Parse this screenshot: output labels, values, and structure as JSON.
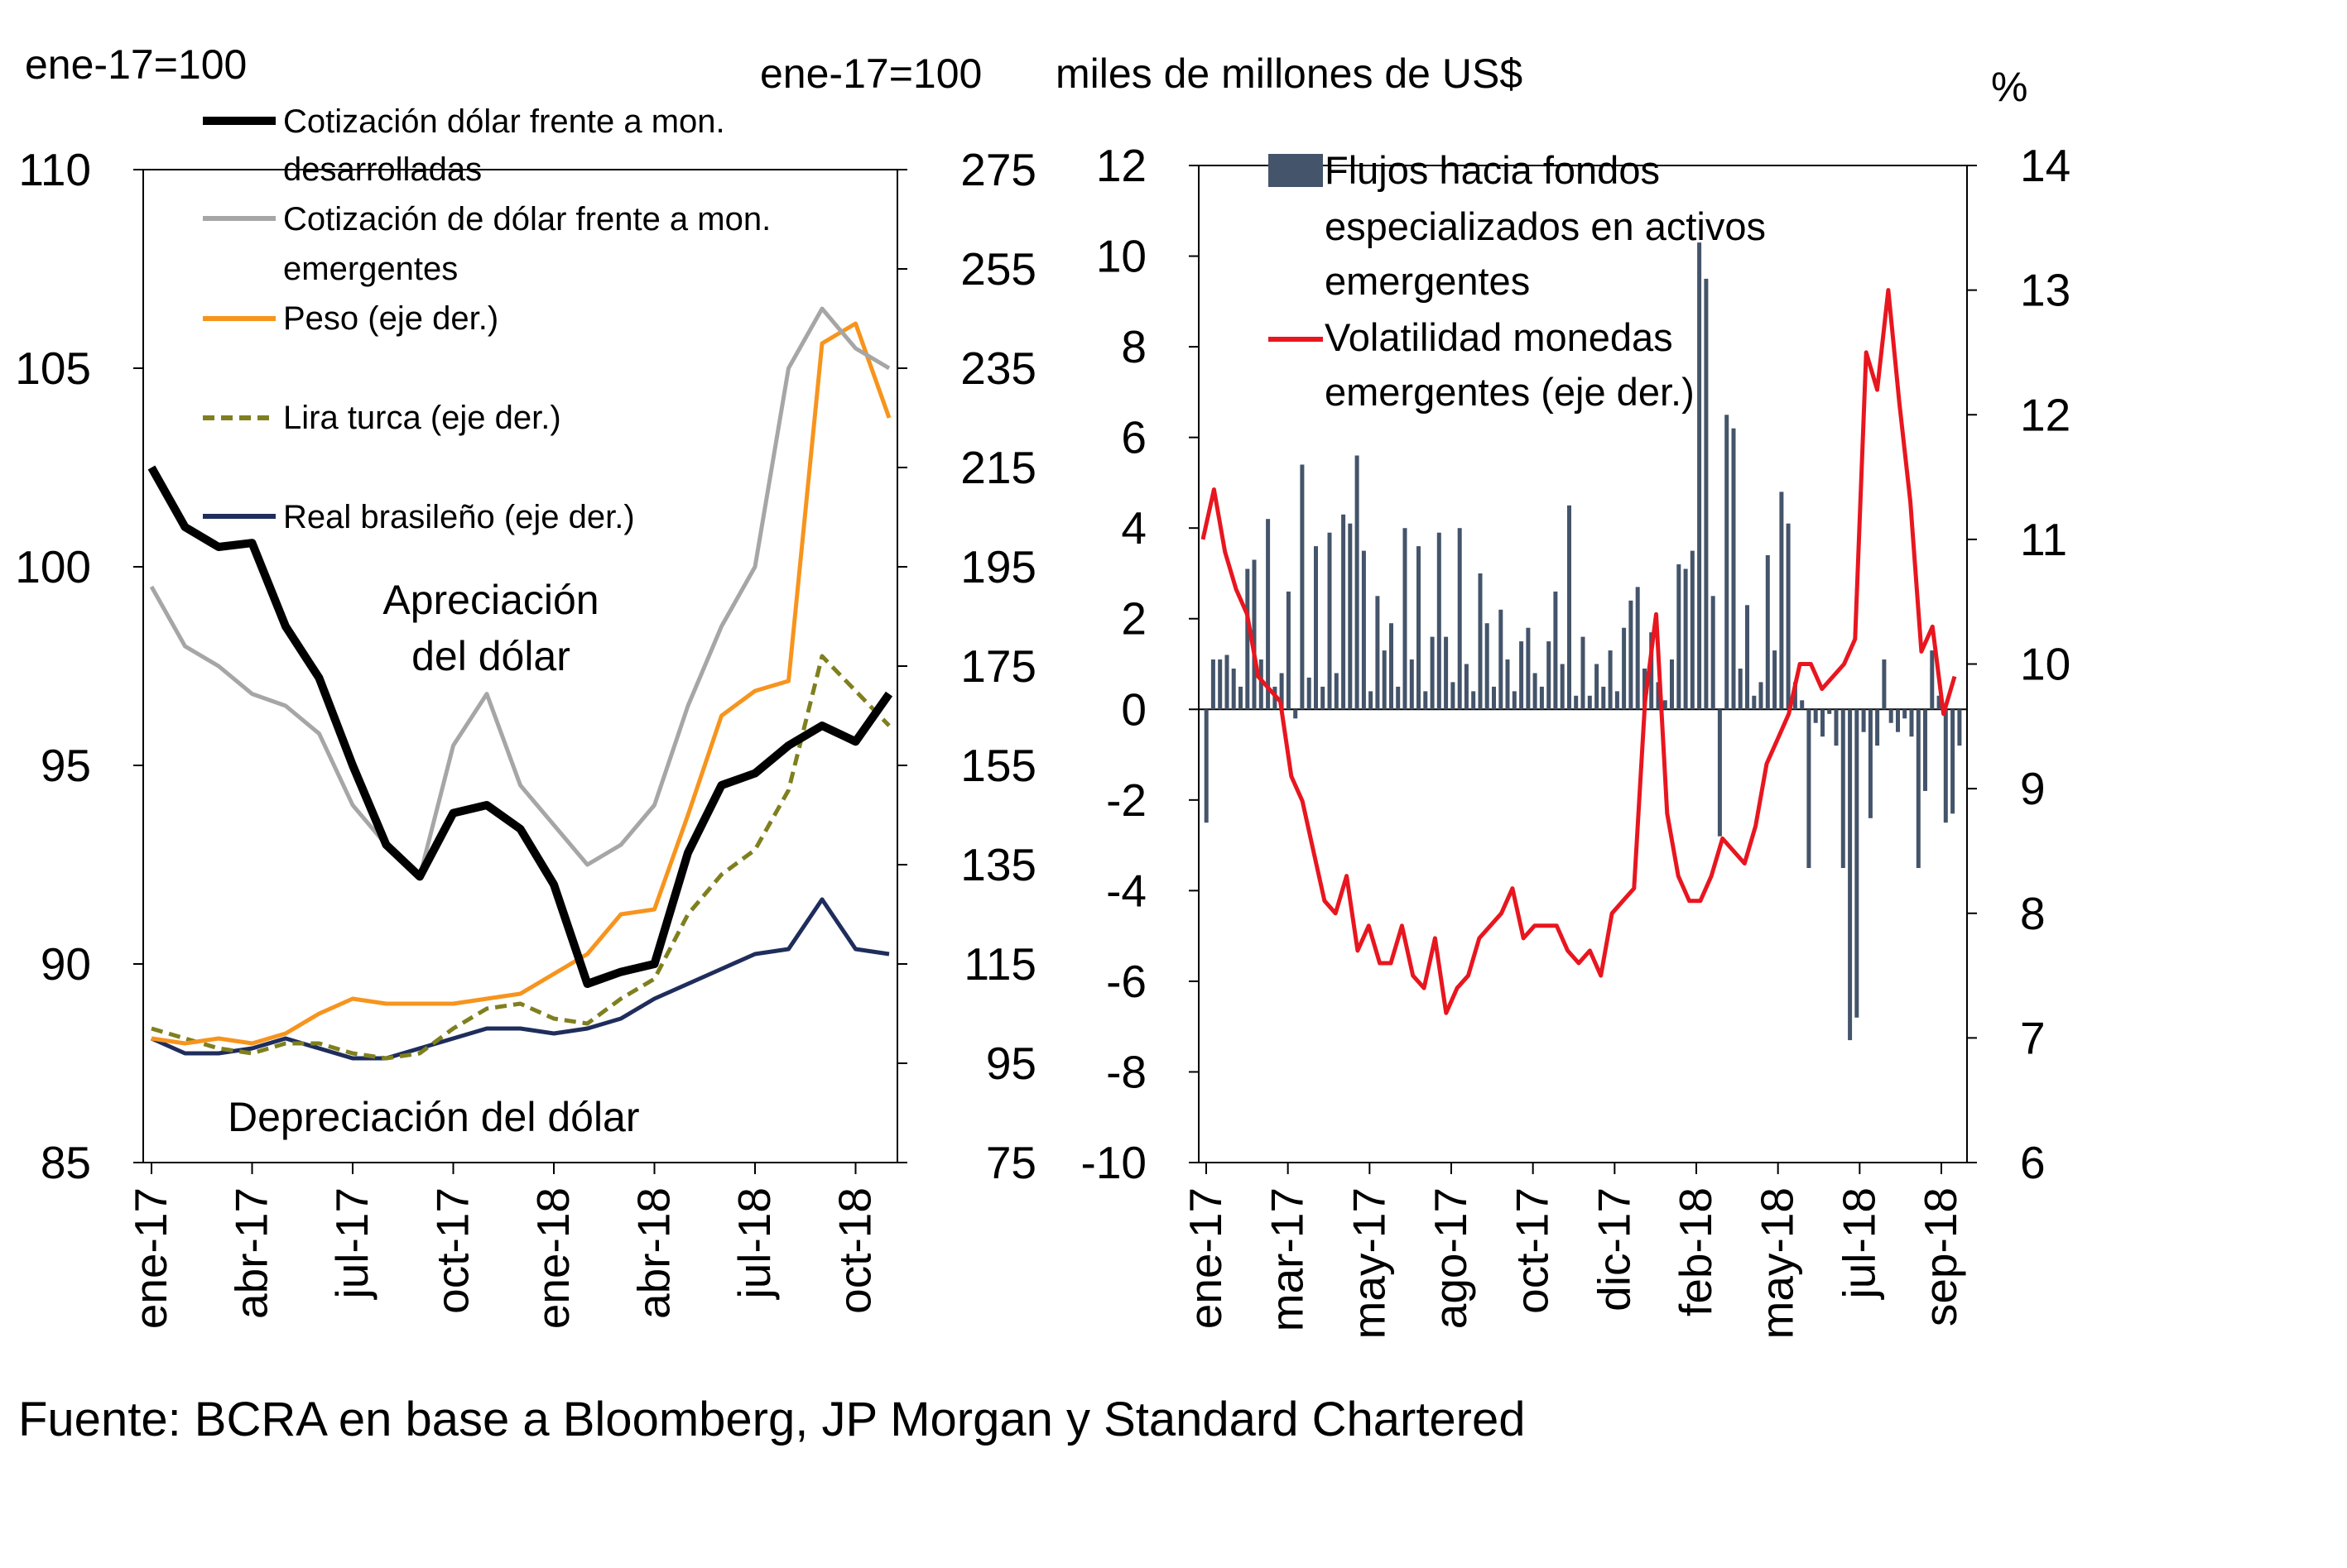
{
  "chart_data": [
    {
      "type": "line",
      "unit_left": "ene-17=100",
      "unit_right": "ene-17=100",
      "x_tick_labels": [
        "ene-17",
        "abr-17",
        "jul-17",
        "oct-17",
        "ene-18",
        "abr-18",
        "jul-18",
        "oct-18"
      ],
      "x": [
        "ene-17",
        "feb-17",
        "mar-17",
        "abr-17",
        "may-17",
        "jun-17",
        "jul-17",
        "ago-17",
        "sep-17",
        "oct-17",
        "nov-17",
        "dic-17",
        "ene-18",
        "feb-18",
        "mar-18",
        "abr-18",
        "may-18",
        "jun-18",
        "jul-18",
        "ago-18",
        "sep-18",
        "oct-18",
        "nov-18"
      ],
      "ylim_left": [
        85,
        110
      ],
      "yticks_left": [
        "85",
        "90",
        "95",
        "100",
        "105",
        "110"
      ],
      "ylim_right": [
        75,
        275
      ],
      "yticks_right": [
        "75",
        "95",
        "115",
        "135",
        "155",
        "175",
        "195",
        "215",
        "235",
        "255",
        "275"
      ],
      "annotations": {
        "up": [
          "Apreciación",
          "del dólar"
        ],
        "down": "Depreciación del  dólar"
      },
      "series": [
        {
          "name": "Cotización dólar frente a mon. desarrolladas",
          "legend_lines": [
            "Cotización dólar frente a mon.",
            "desarrolladas"
          ],
          "axis": "left",
          "color": "#000000",
          "style": "solid-thick",
          "values": [
            102.5,
            101.0,
            100.5,
            100.6,
            98.5,
            97.2,
            95.0,
            93.0,
            92.2,
            93.8,
            94.0,
            93.4,
            92.0,
            89.5,
            89.8,
            90.0,
            92.8,
            94.5,
            94.8,
            95.5,
            96.0,
            95.6,
            96.8
          ]
        },
        {
          "name": "Cotización de dólar frente a mon. emergentes",
          "legend_lines": [
            "Cotización de dólar frente a mon.",
            "emergentes"
          ],
          "axis": "left",
          "color": "#a6a6a6",
          "style": "solid",
          "values": [
            99.5,
            98.0,
            97.5,
            96.8,
            96.5,
            95.8,
            94.0,
            93.0,
            92.2,
            95.5,
            96.8,
            94.5,
            93.5,
            92.5,
            93.0,
            94.0,
            96.5,
            98.5,
            100.0,
            105.0,
            106.5,
            105.5,
            105.0
          ]
        },
        {
          "name": "Peso (eje der.)",
          "legend_lines": [
            "Peso (eje der.)"
          ],
          "axis": "right",
          "color": "#f7941d",
          "style": "solid",
          "values": [
            100,
            99,
            100,
            99,
            101,
            105,
            108,
            107,
            107,
            107,
            108,
            109,
            113,
            117,
            125,
            126,
            145,
            165,
            170,
            172,
            240,
            244,
            225
          ]
        },
        {
          "name": "Lira turca (eje der.)",
          "legend_lines": [
            "Lira turca (eje der.)"
          ],
          "axis": "right",
          "color": "#7f7f1f",
          "style": "dashed",
          "values": [
            102,
            100,
            98,
            97,
            99,
            99,
            97,
            96,
            97,
            102,
            106,
            107,
            104,
            103,
            108,
            112,
            125,
            133,
            138,
            150,
            177,
            170,
            163
          ]
        },
        {
          "name": "Real brasileño (eje der.)",
          "legend_lines": [
            "Real brasileño (eje der.)"
          ],
          "axis": "right",
          "color": "#1f2d5c",
          "style": "solid",
          "values": [
            100,
            97,
            97,
            98,
            100,
            98,
            96,
            96,
            98,
            100,
            102,
            102,
            101,
            102,
            104,
            108,
            111,
            114,
            117,
            118,
            128,
            118,
            117
          ]
        }
      ]
    },
    {
      "type": "bar+line",
      "unit_left": "miles de millones de US$",
      "unit_right": "%",
      "x_tick_labels": [
        "ene-17",
        "mar-17",
        "may-17",
        "ago-17",
        "oct-17",
        "dic-17",
        "feb-18",
        "may-18",
        "jul-18",
        "sep-18"
      ],
      "ylim_left": [
        -10,
        12
      ],
      "yticks_left": [
        "-10",
        "-8",
        "-6",
        "-4",
        "-2",
        "0",
        "2",
        "4",
        "6",
        "8",
        "10",
        "12"
      ],
      "ylim_right": [
        6,
        14
      ],
      "yticks_right": [
        "6",
        "7",
        "8",
        "9",
        "10",
        "11",
        "12",
        "13",
        "14"
      ],
      "bars": {
        "name": "Flujos hacia fondos especializados en activos emergentes",
        "legend_lines": [
          "Flujos hacia fondos",
          "especializados en activos",
          "emergentes"
        ],
        "color": "#44546a",
        "values": [
          -2.5,
          1.1,
          1.1,
          1.2,
          0.9,
          0.5,
          3.1,
          3.3,
          1.1,
          4.2,
          0.5,
          0.8,
          2.6,
          -0.2,
          5.4,
          0.7,
          3.6,
          0.5,
          3.9,
          0.8,
          4.3,
          4.1,
          5.6,
          3.5,
          0.4,
          2.5,
          1.3,
          1.9,
          0.5,
          4.0,
          1.1,
          3.6,
          0.4,
          1.6,
          3.9,
          1.6,
          0.6,
          4.0,
          1.0,
          0.4,
          3.0,
          1.9,
          0.5,
          2.2,
          1.1,
          0.4,
          1.5,
          1.8,
          0.8,
          0.5,
          1.5,
          2.6,
          1.0,
          4.5,
          0.3,
          1.6,
          0.3,
          1.0,
          0.5,
          1.3,
          0.4,
          1.8,
          2.4,
          2.7,
          0.9,
          1.7,
          0.6,
          0.2,
          1.1,
          3.2,
          3.1,
          3.5,
          10.3,
          9.5,
          2.5,
          -2.8,
          6.5,
          6.2,
          0.9,
          2.3,
          0.3,
          0.6,
          3.4,
          1.3,
          4.8,
          4.1,
          0.6,
          0.2,
          -3.5,
          -0.3,
          -0.6,
          -0.1,
          -0.8,
          -3.5,
          -7.3,
          -6.8,
          -0.5,
          -2.4,
          -0.8,
          1.1,
          -0.3,
          -0.5,
          -0.2,
          -0.6,
          -3.5,
          -1.8,
          1.3,
          0.3,
          -2.5,
          -2.3,
          -0.8
        ]
      },
      "line": {
        "name": "Volatilidad monedas emergentes (eje der.)",
        "legend_lines": [
          "Volatilidad monedas",
          "emergentes (eje der.)"
        ],
        "color": "#e8161f",
        "values": [
          11.0,
          11.4,
          10.9,
          10.6,
          10.4,
          9.9,
          9.8,
          9.7,
          9.1,
          8.9,
          8.5,
          8.1,
          8.0,
          8.3,
          7.7,
          7.9,
          7.6,
          7.6,
          7.9,
          7.5,
          7.4,
          7.8,
          7.2,
          7.4,
          7.5,
          7.8,
          7.9,
          8.0,
          8.2,
          7.8,
          7.9,
          7.9,
          7.9,
          7.7,
          7.6,
          7.7,
          7.5,
          8.0,
          8.1,
          8.2,
          9.7,
          10.4,
          8.8,
          8.3,
          8.1,
          8.1,
          8.3,
          8.6,
          8.5,
          8.4,
          8.7,
          9.2,
          9.4,
          9.6,
          10.0,
          10.0,
          9.8,
          9.9,
          10.0,
          10.2,
          12.5,
          12.2,
          13.0,
          12.1,
          11.3,
          10.1,
          10.3,
          9.6,
          9.9
        ]
      }
    }
  ],
  "footer": {
    "source": "Fuente: BCRA en base a Bloomberg, JP Morgan y  Standard Chartered"
  }
}
